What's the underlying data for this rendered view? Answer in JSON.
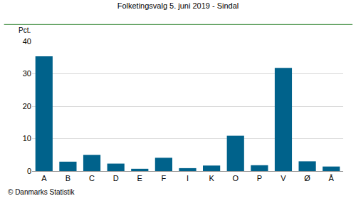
{
  "chart_data": {
    "type": "bar",
    "title": "Folketingsvalg 5. juni 2019 - Sindal",
    "y_label": "Pct.",
    "annotations": [
      "© Danmarks Statistik"
    ],
    "categories": [
      "A",
      "B",
      "C",
      "D",
      "E",
      "F",
      "I",
      "K",
      "O",
      "P",
      "V",
      "Ø",
      "Å"
    ],
    "values": [
      35.4,
      2.9,
      5.0,
      2.3,
      0.7,
      4.1,
      0.9,
      1.7,
      10.9,
      1.8,
      31.8,
      3.0,
      1.4
    ],
    "color": "#00628b",
    "ylim": [
      0,
      40
    ],
    "yticks": [
      0,
      10,
      20,
      30,
      40
    ],
    "grid": true
  }
}
